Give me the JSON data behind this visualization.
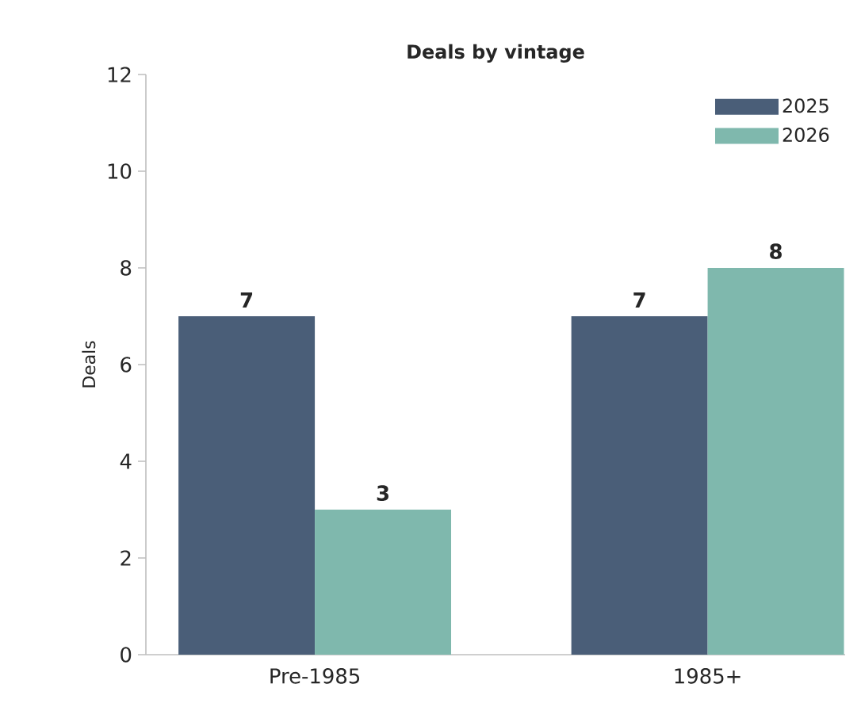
{
  "chart_data": {
    "type": "bar",
    "title": "Deals by vintage",
    "ylabel": "Deals",
    "categories": [
      "Pre-1985",
      "1985+"
    ],
    "series": [
      {
        "name": "2025",
        "color": "#4a5e78",
        "values": [
          7,
          7
        ]
      },
      {
        "name": "2026",
        "color": "#7fb8ad",
        "values": [
          3,
          8
        ]
      }
    ],
    "ylim": [
      0,
      12
    ],
    "yticks": [
      0,
      2,
      4,
      6,
      8,
      10,
      12
    ],
    "grid": false,
    "legend": "top right",
    "data_labels": true
  }
}
